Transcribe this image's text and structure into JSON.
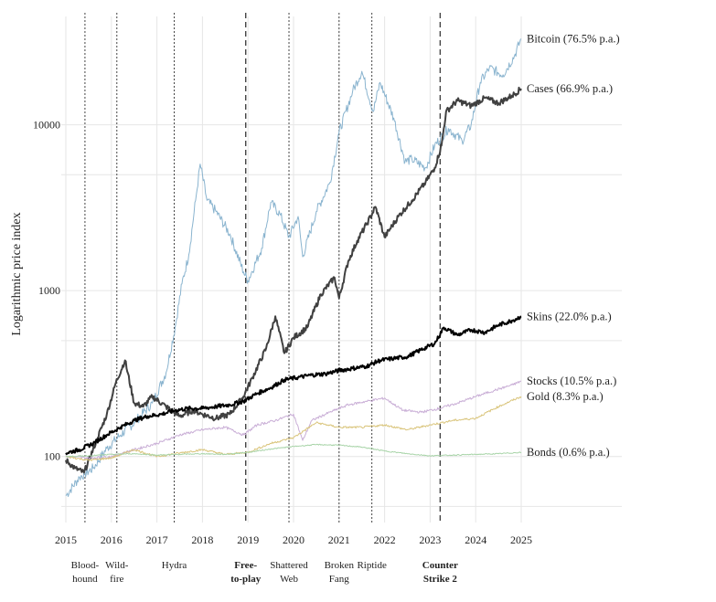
{
  "chart_data": {
    "type": "line",
    "title": "",
    "xlabel": "",
    "ylabel": "Logarithmic price index",
    "y_scale": "log",
    "ylim": [
      40,
      45000
    ],
    "xlim": [
      2015,
      2025
    ],
    "x_ticks": [
      2015,
      2016,
      2017,
      2018,
      2019,
      2020,
      2021,
      2022,
      2023,
      2024,
      2025
    ],
    "y_ticks": [
      100,
      1000,
      10000
    ],
    "y_tick_labels": [
      "100",
      "1000",
      "10000"
    ],
    "grid": true,
    "series": [
      {
        "name": "Bitcoin",
        "label": "Bitcoin (76.5% p.a.)",
        "color": "#8ab4cf",
        "x": [
          2015.0,
          2015.3,
          2015.6,
          2015.9,
          2016.2,
          2016.5,
          2016.9,
          2017.2,
          2017.4,
          2017.55,
          2017.7,
          2017.85,
          2017.95,
          2018.1,
          2018.3,
          2018.6,
          2018.9,
          2019.0,
          2019.3,
          2019.5,
          2019.7,
          2019.9,
          2020.1,
          2020.2,
          2020.5,
          2020.8,
          2021.0,
          2021.3,
          2021.5,
          2021.75,
          2021.9,
          2022.2,
          2022.45,
          2022.6,
          2022.9,
          2023.1,
          2023.4,
          2023.7,
          2023.9,
          2024.1,
          2024.3,
          2024.6,
          2024.85,
          2025.0
        ],
        "values": [
          58,
          75,
          85,
          112,
          135,
          160,
          210,
          320,
          600,
          1100,
          1650,
          3500,
          5800,
          3500,
          3000,
          2200,
          1300,
          1150,
          1800,
          3400,
          2900,
          2100,
          2800,
          1600,
          3000,
          4500,
          9000,
          16000,
          21000,
          12000,
          18000,
          11000,
          6000,
          6200,
          5500,
          7500,
          9500,
          8000,
          10000,
          18000,
          22000,
          20000,
          26000,
          33000
        ]
      },
      {
        "name": "Cases",
        "label": "Cases (66.9% p.a.)",
        "color": "#404040",
        "x": [
          2015.0,
          2015.2,
          2015.4,
          2015.7,
          2015.9,
          2016.1,
          2016.3,
          2016.5,
          2016.7,
          2016.9,
          2017.2,
          2017.5,
          2017.8,
          2018.0,
          2018.3,
          2018.6,
          2018.9,
          2019.1,
          2019.4,
          2019.6,
          2019.8,
          2020.0,
          2020.3,
          2020.6,
          2020.9,
          2021.0,
          2021.2,
          2021.4,
          2021.6,
          2021.8,
          2022.0,
          2022.3,
          2022.6,
          2022.9,
          2023.1,
          2023.25,
          2023.35,
          2023.6,
          2023.9,
          2024.2,
          2024.5,
          2024.8,
          2025.0
        ],
        "values": [
          95,
          85,
          80,
          130,
          180,
          280,
          380,
          210,
          200,
          230,
          200,
          175,
          190,
          180,
          170,
          180,
          230,
          300,
          450,
          700,
          420,
          520,
          600,
          950,
          1200,
          900,
          1500,
          2000,
          2500,
          3200,
          2100,
          2800,
          3500,
          4500,
          5500,
          7500,
          12000,
          14000,
          13000,
          14500,
          13500,
          15000,
          16500
        ]
      },
      {
        "name": "Skins",
        "label": "Skins (22.0% p.a.)",
        "color": "#000000",
        "x": [
          2015.0,
          2015.3,
          2015.6,
          2015.9,
          2016.2,
          2016.5,
          2016.8,
          2017.1,
          2017.4,
          2017.7,
          2018.0,
          2018.3,
          2018.6,
          2018.9,
          2019.2,
          2019.5,
          2019.8,
          2020.1,
          2020.4,
          2020.7,
          2021.0,
          2021.3,
          2021.6,
          2021.9,
          2022.2,
          2022.5,
          2022.8,
          2023.1,
          2023.3,
          2023.6,
          2023.9,
          2024.2,
          2024.5,
          2024.8,
          2025.0
        ],
        "values": [
          105,
          110,
          120,
          135,
          150,
          165,
          175,
          180,
          190,
          195,
          195,
          200,
          205,
          215,
          240,
          260,
          290,
          300,
          310,
          315,
          330,
          340,
          350,
          380,
          390,
          400,
          440,
          480,
          600,
          540,
          580,
          560,
          620,
          660,
          700
        ]
      },
      {
        "name": "Stocks",
        "label": "Stocks (10.5% p.a.)",
        "color": "#c9aed6",
        "x": [
          2015.0,
          2015.5,
          2016.0,
          2016.5,
          2017.0,
          2017.5,
          2018.0,
          2018.5,
          2018.9,
          2019.2,
          2019.6,
          2020.0,
          2020.2,
          2020.4,
          2020.8,
          2021.2,
          2021.6,
          2022.0,
          2022.4,
          2022.8,
          2023.2,
          2023.6,
          2024.0,
          2024.4,
          2024.8,
          2025.0
        ],
        "values": [
          100,
          98,
          100,
          110,
          120,
          135,
          145,
          150,
          135,
          155,
          165,
          180,
          125,
          165,
          185,
          205,
          215,
          225,
          190,
          185,
          195,
          210,
          230,
          250,
          270,
          285
        ]
      },
      {
        "name": "Gold",
        "label": "Gold (8.3% p.a.)",
        "color": "#d9c47a",
        "x": [
          2015.0,
          2015.5,
          2016.0,
          2016.5,
          2017.0,
          2017.5,
          2018.0,
          2018.5,
          2019.0,
          2019.5,
          2020.0,
          2020.5,
          2021.0,
          2021.5,
          2022.0,
          2022.5,
          2023.0,
          2023.5,
          2024.0,
          2024.5,
          2025.0
        ],
        "values": [
          100,
          95,
          98,
          110,
          100,
          105,
          110,
          103,
          106,
          120,
          130,
          160,
          150,
          150,
          155,
          145,
          155,
          165,
          170,
          200,
          230
        ]
      },
      {
        "name": "Bonds",
        "label": "Bonds (0.6% p.a.)",
        "color": "#a8d4a8",
        "x": [
          2015.0,
          2015.5,
          2016.0,
          2016.5,
          2017.0,
          2017.5,
          2018.0,
          2018.5,
          2019.0,
          2019.5,
          2020.0,
          2020.5,
          2021.0,
          2021.5,
          2022.0,
          2022.5,
          2023.0,
          2023.5,
          2024.0,
          2024.5,
          2025.0
        ],
        "values": [
          100,
          101,
          103,
          104,
          102,
          103,
          104,
          103,
          106,
          111,
          115,
          118,
          117,
          114,
          108,
          104,
          101,
          102,
          103,
          104,
          106
        ]
      }
    ],
    "events": [
      {
        "x": 2015.42,
        "label": [
          "Blood-",
          "hound"
        ],
        "style": "dotted",
        "bold": false
      },
      {
        "x": 2016.12,
        "label": [
          "Wild-",
          "fire"
        ],
        "style": "dotted",
        "bold": false
      },
      {
        "x": 2017.38,
        "label": [
          "Hydra"
        ],
        "style": "dotted",
        "bold": false
      },
      {
        "x": 2018.95,
        "label": [
          "Free-",
          "to-play"
        ],
        "style": "dashed",
        "bold": true
      },
      {
        "x": 2019.9,
        "label": [
          "Shattered",
          "Web"
        ],
        "style": "dotted",
        "bold": false
      },
      {
        "x": 2021.0,
        "label": [
          "Broken",
          "Fang"
        ],
        "style": "dotted",
        "bold": false
      },
      {
        "x": 2021.72,
        "label": [
          "Riptide"
        ],
        "style": "dotted",
        "bold": false
      },
      {
        "x": 2023.22,
        "label": [
          "Counter",
          "Strike 2"
        ],
        "style": "dashed",
        "bold": true
      }
    ]
  }
}
